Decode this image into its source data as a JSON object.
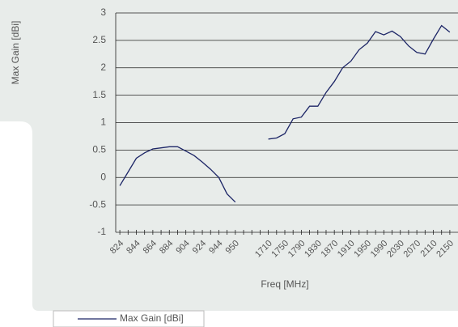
{
  "chart_data": {
    "type": "line",
    "y_label": "Max Gain [dBi]",
    "x_label": "Freq [MHz]",
    "categories": [
      "824",
      null,
      "844",
      null,
      "864",
      null,
      "884",
      null,
      "904",
      null,
      "924",
      null,
      "944",
      null,
      "950",
      null,
      null,
      null,
      "1710",
      null,
      "1750",
      null,
      "1790",
      null,
      "1830",
      null,
      "1870",
      null,
      "1910",
      null,
      "1950",
      null,
      "1990",
      null,
      "2030",
      null,
      "2070",
      null,
      "2110",
      null,
      "2150"
    ],
    "series": [
      {
        "name": "Max Gain [dBi]",
        "color": "#1c2566",
        "values": [
          -0.15,
          0.1,
          0.35,
          0.45,
          0.52,
          0.54,
          0.56,
          0.56,
          0.48,
          0.4,
          0.28,
          0.15,
          0.0,
          -0.3,
          -0.45,
          null,
          null,
          null,
          0.7,
          0.72,
          0.8,
          1.07,
          1.1,
          1.3,
          1.3,
          1.55,
          1.75,
          2.0,
          2.12,
          2.33,
          2.45,
          2.66,
          2.6,
          2.67,
          2.57,
          2.4,
          2.28,
          2.25,
          2.52,
          2.77,
          2.65
        ]
      }
    ],
    "ylim": [
      -1,
      3
    ],
    "yticks": [
      -1,
      -0.5,
      0,
      0.5,
      1,
      1.5,
      2,
      2.5,
      3
    ],
    "grid": true,
    "legend": "bottom-left"
  }
}
